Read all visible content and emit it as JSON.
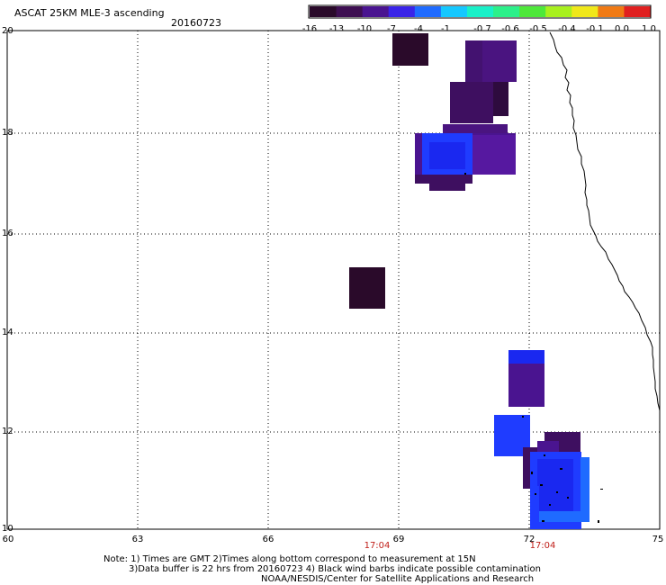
{
  "header": {
    "title": "ASCAT 25KM MLE-3 ascending",
    "date": "20160723"
  },
  "colorbar": {
    "labels": [
      "-16",
      "-13",
      "-10",
      "-7",
      "-4",
      "-1",
      "-0.7",
      "-0.6",
      "-0.5",
      "-0.4",
      "-0.1",
      "0.0",
      "1.0"
    ],
    "colors": [
      "#2a0a2a",
      "#3e0f52",
      "#4a1490",
      "#3a24e8",
      "#1f6bff",
      "#15c8ff",
      "#19f0c8",
      "#2cf08a",
      "#4ee83a",
      "#a8f01e",
      "#f0e81a",
      "#f07a14",
      "#e02020"
    ]
  },
  "map": {
    "lat_labels": [
      "20",
      "18",
      "16",
      "14",
      "12",
      "10"
    ],
    "lon_labels": [
      "60",
      "63",
      "66",
      "69",
      "72",
      "75"
    ],
    "time_labels": [
      "17:04",
      "17:04"
    ],
    "grid": "dotted",
    "coastline": "India west coast"
  },
  "footer": {
    "line1": "Note: 1) Times are GMT 2)Times along bottom correspond to measurement at 15N",
    "line2": "3)Data buffer is 22 hrs from 20160723 4) Black wind barbs indicate possible contamination",
    "line3": "NOAA/NESDIS/Center for Satellite Applications and Research"
  }
}
